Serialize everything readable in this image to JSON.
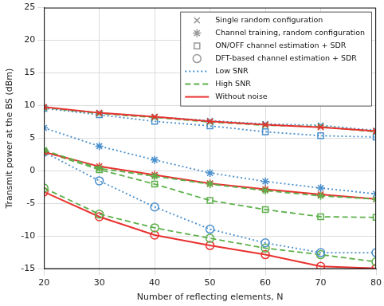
{
  "chart_data": {
    "type": "line",
    "x_label": "Number of reflecting elements, N",
    "y_label": "Transmit power at the BS (dBm)",
    "x": [
      20,
      30,
      40,
      50,
      60,
      70,
      80
    ],
    "xlim": [
      20,
      80
    ],
    "xticks": [
      20,
      30,
      40,
      50,
      60,
      70,
      80
    ],
    "ylim": [
      -15,
      25
    ],
    "yticks": [
      -15,
      -10,
      -5,
      0,
      5,
      10,
      15,
      20,
      25
    ],
    "grid": true,
    "legend": "upper right",
    "legend_markers": [
      {
        "name": "Single random configuration",
        "marker": "x",
        "color": "#999999"
      },
      {
        "name": "Channel training, random configuration",
        "marker": "star",
        "color": "#999999"
      },
      {
        "name": "ON/OFF channel estimation + SDR",
        "marker": "square",
        "color": "#999999"
      },
      {
        "name": "DFT-based channel estimation + SDR",
        "marker": "circle",
        "color": "#999999"
      }
    ],
    "legend_lines": [
      {
        "name": "Low SNR",
        "line_style": "dotted",
        "color": "#4a8fcc"
      },
      {
        "name": "High SNR",
        "line_style": "dashed",
        "color": "#5cb04a"
      },
      {
        "name": "Without noise",
        "line_style": "solid",
        "color": "#e8312f"
      }
    ],
    "series": [
      {
        "marker": "x",
        "line_style": "solid",
        "color": "#e8312f",
        "values": [
          9.8,
          8.9,
          8.3,
          7.6,
          7.1,
          6.7,
          6.1
        ]
      },
      {
        "marker": "x",
        "line_style": "dashed",
        "color": "#5cb04a",
        "values": [
          9.7,
          8.8,
          8.2,
          7.5,
          7.0,
          6.8,
          6.0
        ]
      },
      {
        "marker": "x",
        "line_style": "dotted",
        "color": "#4a8fcc",
        "values": [
          9.7,
          8.9,
          8.3,
          7.7,
          7.2,
          7.0,
          6.2
        ]
      },
      {
        "marker": "square",
        "line_style": "dotted",
        "color": "#4a8fcc",
        "values": [
          9.6,
          8.6,
          7.6,
          6.9,
          6.0,
          5.4,
          5.2
        ]
      },
      {
        "marker": "star",
        "line_style": "dotted",
        "color": "#4a8fcc",
        "values": [
          6.6,
          3.8,
          1.7,
          -0.3,
          -1.6,
          -2.6,
          -3.5
        ]
      },
      {
        "marker": "star",
        "line_style": "dashed",
        "color": "#5cb04a",
        "values": [
          3.2,
          0.4,
          -0.8,
          -2.0,
          -3.0,
          -3.8,
          -4.3
        ]
      },
      {
        "marker": "star",
        "line_style": "solid",
        "color": "#e8312f",
        "values": [
          2.9,
          0.7,
          -0.6,
          -1.9,
          -2.8,
          -3.6,
          -4.3
        ]
      },
      {
        "marker": "square",
        "line_style": "dashed",
        "color": "#5cb04a",
        "values": [
          3.0,
          0.2,
          -2.0,
          -4.5,
          -5.9,
          -7.0,
          -7.1
        ]
      },
      {
        "marker": "circle",
        "line_style": "dotted",
        "color": "#4a8fcc",
        "values": [
          2.9,
          -1.5,
          -5.5,
          -8.9,
          -11.0,
          -12.5,
          -12.5
        ]
      },
      {
        "marker": "circle",
        "line_style": "dashed",
        "color": "#5cb04a",
        "values": [
          -2.6,
          -6.6,
          -8.7,
          -10.3,
          -11.8,
          -12.8,
          -13.9
        ]
      },
      {
        "marker": "circle",
        "line_style": "solid",
        "color": "#e8312f",
        "values": [
          -3.2,
          -7.0,
          -9.8,
          -11.4,
          -12.8,
          -14.6,
          -14.9
        ]
      }
    ]
  }
}
